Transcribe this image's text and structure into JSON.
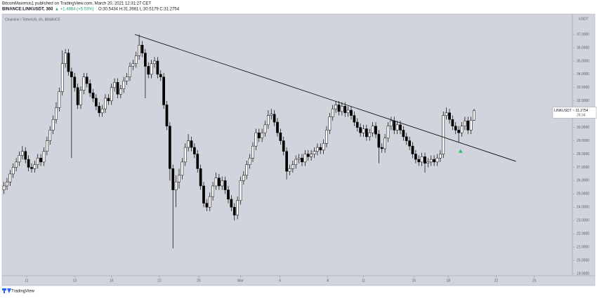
{
  "header": {
    "line1": "BitcoinMaximus1 published on TradingView.com, March 20, 2021 12:31:27 CET",
    "symbol": "BINANCE:LINKUSDT, 360",
    "change": "▲ +1.4984 (+5.03%)",
    "ohlc": "O:30.5434 H:31.3981 L:30.5179 C:31.2754"
  },
  "footer": {
    "brand": "TradingView"
  },
  "chart_data": {
    "type": "candlestick",
    "title": "Chainlink / TetherUS, 6h, BINANCE",
    "y_unit": "USDT",
    "up_color": "#ffffff",
    "down_color": "#000000",
    "line_color": "#000000",
    "grid": false,
    "xlim": [
      9.6,
      56
    ],
    "ylim": [
      18.84,
      38.43
    ],
    "xticks": [
      {
        "value": 11.6,
        "label": "11"
      },
      {
        "value": 15.5,
        "label": "13"
      },
      {
        "value": 18.5,
        "label": "16"
      },
      {
        "value": 22.4,
        "label": "22"
      },
      {
        "value": 25.6,
        "label": "25"
      },
      {
        "value": 29,
        "label": "Mar"
      },
      {
        "value": 32.2,
        "label": "4"
      },
      {
        "value": 36.1,
        "label": "8"
      },
      {
        "value": 39,
        "label": "11"
      },
      {
        "value": 43.1,
        "label": "15"
      },
      {
        "value": 45.9,
        "label": "18"
      },
      {
        "value": 49.8,
        "label": "22"
      },
      {
        "value": 52.9,
        "label": "25"
      }
    ],
    "yticks": [
      {
        "value": 37,
        "label": "37.0000"
      },
      {
        "value": 36,
        "label": "36.0000"
      },
      {
        "value": 35,
        "label": "35.0000"
      },
      {
        "value": 34,
        "label": "34.0000"
      },
      {
        "value": 33,
        "label": "33.0000"
      },
      {
        "value": 32,
        "label": "32.0000"
      },
      {
        "value": 31,
        "label": "31.0000"
      },
      {
        "value": 30,
        "label": "30.0000"
      },
      {
        "value": 29,
        "label": "29.0000"
      },
      {
        "value": 28,
        "label": "28.0000"
      },
      {
        "value": 27,
        "label": "27.0000"
      },
      {
        "value": 26,
        "label": "26.0000"
      },
      {
        "value": 25,
        "label": "25.0000"
      },
      {
        "value": 24,
        "label": "24.0000"
      },
      {
        "value": 23,
        "label": "23.0000"
      },
      {
        "value": 22,
        "label": "22.0000"
      },
      {
        "value": 21,
        "label": "21.0000"
      },
      {
        "value": 20,
        "label": "20.0000"
      },
      {
        "value": 19,
        "label": "19.0000"
      }
    ],
    "price_tag": {
      "value": 31.2754,
      "label": "LINKUSDT ~ 31.2754",
      "countdown": "28:34"
    },
    "trendline": {
      "x": [
        20.4,
        51.4
      ],
      "y": [
        37.0,
        27.45
      ],
      "color": "#000000"
    },
    "marker": {
      "x": 46.9,
      "y": 28.2,
      "color": "#22c55e"
    },
    "candles": [
      [
        9.75,
        25.3,
        25.9,
        25.0,
        25.6
      ],
      [
        10.0,
        25.6,
        26.2,
        25.3,
        25.9
      ],
      [
        10.25,
        25.9,
        26.8,
        25.6,
        26.5
      ],
      [
        10.5,
        26.5,
        27.3,
        26.2,
        27.0
      ],
      [
        10.75,
        27.0,
        27.7,
        26.7,
        27.4
      ],
      [
        11.0,
        27.4,
        28.2,
        27.1,
        27.9
      ],
      [
        11.25,
        27.9,
        28.6,
        27.6,
        28.2
      ],
      [
        11.5,
        28.2,
        28.5,
        27.3,
        27.6
      ],
      [
        11.75,
        27.6,
        27.9,
        26.7,
        27.0
      ],
      [
        12.0,
        27.0,
        27.3,
        26.6,
        26.9
      ],
      [
        12.25,
        26.9,
        27.5,
        26.6,
        27.2
      ],
      [
        12.5,
        27.2,
        28.0,
        26.9,
        27.7
      ],
      [
        12.75,
        27.7,
        28.0,
        27.1,
        27.4
      ],
      [
        13.0,
        27.4,
        28.5,
        27.1,
        28.2
      ],
      [
        13.25,
        28.2,
        29.3,
        27.9,
        29.0
      ],
      [
        13.5,
        29.0,
        30.1,
        28.7,
        29.8
      ],
      [
        13.75,
        29.8,
        30.9,
        29.5,
        30.6
      ],
      [
        14.0,
        30.6,
        31.9,
        30.3,
        31.5
      ],
      [
        14.25,
        31.5,
        33.0,
        31.2,
        32.7
      ],
      [
        14.5,
        32.7,
        35.8,
        32.4,
        34.8
      ],
      [
        14.75,
        34.8,
        35.9,
        34.5,
        35.6
      ],
      [
        15.0,
        35.6,
        35.9,
        33.9,
        34.2
      ],
      [
        15.25,
        34.2,
        34.5,
        27.7,
        33.8
      ],
      [
        15.5,
        33.8,
        34.1,
        32.7,
        33.0
      ],
      [
        15.75,
        33.0,
        33.3,
        31.4,
        31.7
      ],
      [
        16.0,
        31.7,
        33.1,
        31.4,
        32.8
      ],
      [
        16.25,
        32.8,
        34.1,
        32.5,
        33.8
      ],
      [
        16.5,
        33.8,
        34.1,
        33.0,
        33.3
      ],
      [
        16.75,
        33.3,
        33.6,
        32.3,
        32.6
      ],
      [
        17.0,
        32.6,
        32.9,
        31.9,
        32.2
      ],
      [
        17.25,
        32.2,
        32.5,
        31.3,
        31.6
      ],
      [
        17.5,
        31.6,
        31.9,
        30.8,
        31.1
      ],
      [
        17.75,
        31.1,
        31.7,
        30.8,
        31.4
      ],
      [
        18.0,
        31.4,
        32.5,
        31.1,
        32.2
      ],
      [
        18.25,
        32.2,
        32.5,
        31.7,
        32.0
      ],
      [
        18.5,
        32.0,
        33.3,
        31.7,
        33.0
      ],
      [
        18.75,
        33.0,
        33.7,
        32.7,
        33.4
      ],
      [
        19.0,
        33.4,
        33.7,
        32.2,
        32.5
      ],
      [
        19.25,
        32.5,
        33.2,
        32.2,
        32.9
      ],
      [
        19.5,
        32.9,
        33.8,
        32.6,
        33.5
      ],
      [
        19.75,
        33.5,
        34.1,
        33.2,
        33.8
      ],
      [
        20.0,
        33.8,
        34.9,
        33.5,
        34.6
      ],
      [
        20.25,
        34.6,
        35.1,
        34.3,
        34.8
      ],
      [
        20.5,
        34.8,
        35.7,
        34.5,
        35.4
      ],
      [
        20.75,
        35.4,
        37.0,
        35.1,
        36.2
      ],
      [
        21.0,
        36.2,
        36.5,
        35.3,
        35.6
      ],
      [
        21.25,
        35.6,
        35.9,
        32.2,
        34.6
      ],
      [
        21.5,
        34.6,
        34.9,
        33.7,
        34.0
      ],
      [
        21.75,
        34.0,
        35.1,
        33.7,
        34.8
      ],
      [
        22.0,
        34.8,
        35.3,
        34.5,
        35.0
      ],
      [
        22.25,
        35.0,
        35.3,
        33.7,
        34.0
      ],
      [
        22.5,
        34.0,
        34.3,
        33.5,
        33.8
      ],
      [
        22.75,
        33.8,
        34.1,
        31.4,
        31.7
      ],
      [
        23.0,
        31.7,
        32.0,
        29.8,
        30.1
      ],
      [
        23.25,
        30.1,
        30.4,
        26.0,
        26.9
      ],
      [
        23.5,
        26.9,
        27.2,
        20.9,
        25.3
      ],
      [
        23.75,
        25.3,
        26.4,
        24.0,
        25.9
      ],
      [
        24.0,
        25.9,
        26.9,
        25.4,
        26.4
      ],
      [
        24.25,
        26.4,
        27.7,
        26.1,
        27.4
      ],
      [
        24.5,
        27.4,
        28.8,
        27.1,
        28.5
      ],
      [
        24.75,
        28.5,
        29.5,
        28.2,
        29.0
      ],
      [
        25.0,
        29.0,
        29.3,
        28.2,
        28.5
      ],
      [
        25.25,
        28.5,
        28.8,
        27.7,
        28.0
      ],
      [
        25.5,
        28.0,
        28.3,
        26.6,
        26.9
      ],
      [
        25.75,
        26.9,
        27.2,
        25.3,
        25.6
      ],
      [
        26.0,
        25.6,
        25.9,
        24.0,
        24.3
      ],
      [
        26.25,
        24.3,
        24.6,
        23.7,
        24.0
      ],
      [
        26.5,
        24.0,
        25.1,
        23.7,
        24.8
      ],
      [
        26.75,
        24.8,
        25.9,
        24.5,
        25.6
      ],
      [
        27.0,
        25.6,
        26.6,
        25.3,
        26.2
      ],
      [
        27.25,
        26.2,
        26.5,
        25.3,
        25.6
      ],
      [
        27.5,
        25.6,
        26.3,
        25.3,
        26.0
      ],
      [
        27.75,
        26.0,
        26.3,
        25.0,
        25.3
      ],
      [
        28.0,
        25.3,
        25.6,
        24.3,
        24.6
      ],
      [
        28.25,
        24.6,
        24.9,
        23.7,
        24.0
      ],
      [
        28.5,
        24.0,
        24.3,
        23.0,
        23.4
      ],
      [
        28.75,
        23.4,
        24.8,
        23.1,
        24.5
      ],
      [
        29.0,
        24.5,
        26.3,
        24.2,
        26.0
      ],
      [
        29.25,
        26.0,
        26.7,
        25.7,
        26.4
      ],
      [
        29.5,
        26.4,
        27.5,
        26.1,
        27.2
      ],
      [
        29.75,
        27.2,
        28.0,
        26.9,
        27.7
      ],
      [
        30.0,
        27.7,
        28.9,
        27.4,
        28.6
      ],
      [
        30.25,
        28.6,
        29.9,
        28.3,
        29.6
      ],
      [
        30.5,
        29.6,
        29.9,
        28.9,
        29.2
      ],
      [
        30.75,
        29.2,
        29.9,
        28.9,
        29.6
      ],
      [
        31.0,
        29.6,
        30.5,
        29.3,
        30.2
      ],
      [
        31.25,
        30.2,
        31.3,
        29.9,
        30.9
      ],
      [
        31.5,
        30.9,
        31.4,
        30.6,
        31.0
      ],
      [
        31.75,
        31.0,
        31.3,
        30.1,
        30.4
      ],
      [
        32.0,
        30.4,
        30.7,
        29.3,
        29.6
      ],
      [
        32.25,
        29.6,
        29.9,
        28.7,
        29.0
      ],
      [
        32.5,
        29.0,
        29.3,
        27.9,
        28.2
      ],
      [
        32.75,
        28.2,
        28.5,
        26.1,
        26.7
      ],
      [
        33.0,
        26.7,
        27.2,
        26.4,
        26.9
      ],
      [
        33.25,
        26.9,
        27.5,
        26.6,
        27.2
      ],
      [
        33.5,
        27.2,
        27.9,
        26.9,
        27.6
      ],
      [
        33.75,
        27.6,
        28.0,
        27.3,
        27.7
      ],
      [
        34.0,
        27.7,
        28.0,
        27.1,
        27.4
      ],
      [
        34.25,
        27.4,
        28.3,
        27.1,
        28.0
      ],
      [
        34.5,
        28.0,
        28.3,
        27.5,
        27.8
      ],
      [
        34.75,
        27.8,
        28.3,
        27.5,
        28.0
      ],
      [
        35.0,
        28.0,
        28.5,
        27.7,
        28.2
      ],
      [
        35.25,
        28.2,
        28.8,
        27.9,
        28.5
      ],
      [
        35.5,
        28.5,
        28.8,
        28.0,
        28.3
      ],
      [
        35.75,
        28.3,
        29.1,
        28.0,
        28.8
      ],
      [
        36.0,
        28.8,
        30.1,
        28.5,
        29.8
      ],
      [
        36.25,
        29.8,
        31.1,
        29.5,
        30.8
      ],
      [
        36.5,
        30.8,
        31.7,
        30.5,
        31.4
      ],
      [
        36.75,
        31.4,
        32.0,
        31.1,
        31.7
      ],
      [
        37.0,
        31.7,
        32.0,
        30.9,
        31.2
      ],
      [
        37.25,
        31.2,
        31.9,
        30.9,
        31.6
      ],
      [
        37.5,
        31.6,
        31.9,
        30.8,
        31.1
      ],
      [
        37.75,
        31.1,
        31.6,
        30.8,
        31.3
      ],
      [
        38.0,
        31.3,
        31.6,
        30.6,
        30.9
      ],
      [
        38.25,
        30.9,
        31.2,
        30.1,
        30.4
      ],
      [
        38.5,
        30.4,
        30.7,
        29.7,
        30.0
      ],
      [
        38.75,
        30.0,
        30.3,
        29.3,
        29.6
      ],
      [
        39.0,
        29.6,
        30.2,
        29.3,
        29.9
      ],
      [
        39.25,
        29.9,
        30.2,
        29.0,
        29.3
      ],
      [
        39.5,
        29.3,
        29.9,
        29.0,
        29.6
      ],
      [
        39.75,
        29.6,
        30.4,
        29.3,
        30.1
      ],
      [
        40.0,
        30.1,
        30.4,
        29.2,
        29.5
      ],
      [
        40.25,
        29.5,
        29.8,
        27.3,
        28.5
      ],
      [
        40.5,
        28.5,
        28.8,
        28.1,
        28.4
      ],
      [
        40.75,
        28.4,
        29.5,
        28.1,
        29.2
      ],
      [
        41.0,
        29.2,
        30.4,
        28.9,
        30.1
      ],
      [
        41.25,
        30.1,
        30.8,
        29.8,
        30.5
      ],
      [
        41.5,
        30.5,
        30.8,
        29.5,
        29.8
      ],
      [
        41.75,
        29.8,
        30.5,
        29.5,
        30.2
      ],
      [
        42.0,
        30.2,
        30.5,
        29.5,
        29.8
      ],
      [
        42.25,
        29.8,
        30.1,
        29.0,
        29.3
      ],
      [
        42.5,
        29.3,
        29.6,
        28.7,
        29.0
      ],
      [
        42.75,
        29.0,
        29.3,
        28.3,
        28.6
      ],
      [
        43.0,
        28.6,
        28.9,
        27.7,
        28.0
      ],
      [
        43.25,
        28.0,
        28.3,
        27.3,
        27.6
      ],
      [
        43.5,
        27.6,
        27.9,
        27.1,
        27.4
      ],
      [
        43.75,
        27.4,
        28.1,
        27.1,
        27.8
      ],
      [
        44.0,
        27.8,
        28.1,
        26.6,
        27.3
      ],
      [
        44.25,
        27.3,
        27.7,
        27.0,
        27.4
      ],
      [
        44.5,
        27.4,
        27.9,
        27.1,
        27.6
      ],
      [
        44.75,
        27.6,
        27.9,
        27.1,
        27.4
      ],
      [
        45.0,
        27.4,
        28.0,
        27.1,
        27.7
      ],
      [
        45.25,
        27.7,
        28.3,
        27.4,
        28.0
      ],
      [
        45.5,
        28.0,
        31.2,
        27.7,
        30.9
      ],
      [
        45.75,
        30.9,
        31.5,
        30.6,
        31.1
      ],
      [
        46.0,
        31.1,
        31.4,
        30.3,
        30.6
      ],
      [
        46.25,
        30.6,
        30.9,
        29.8,
        30.1
      ],
      [
        46.5,
        30.1,
        30.4,
        29.5,
        29.8
      ],
      [
        46.75,
        29.8,
        30.1,
        28.9,
        29.6
      ],
      [
        47.0,
        29.6,
        30.4,
        29.3,
        30.1
      ],
      [
        47.25,
        30.1,
        30.8,
        29.8,
        30.5
      ],
      [
        47.5,
        30.5,
        30.8,
        29.5,
        29.8
      ],
      [
        47.75,
        29.8,
        30.8,
        29.5,
        30.5434
      ],
      [
        48.0,
        30.5434,
        31.3981,
        30.5179,
        31.2754
      ]
    ]
  }
}
